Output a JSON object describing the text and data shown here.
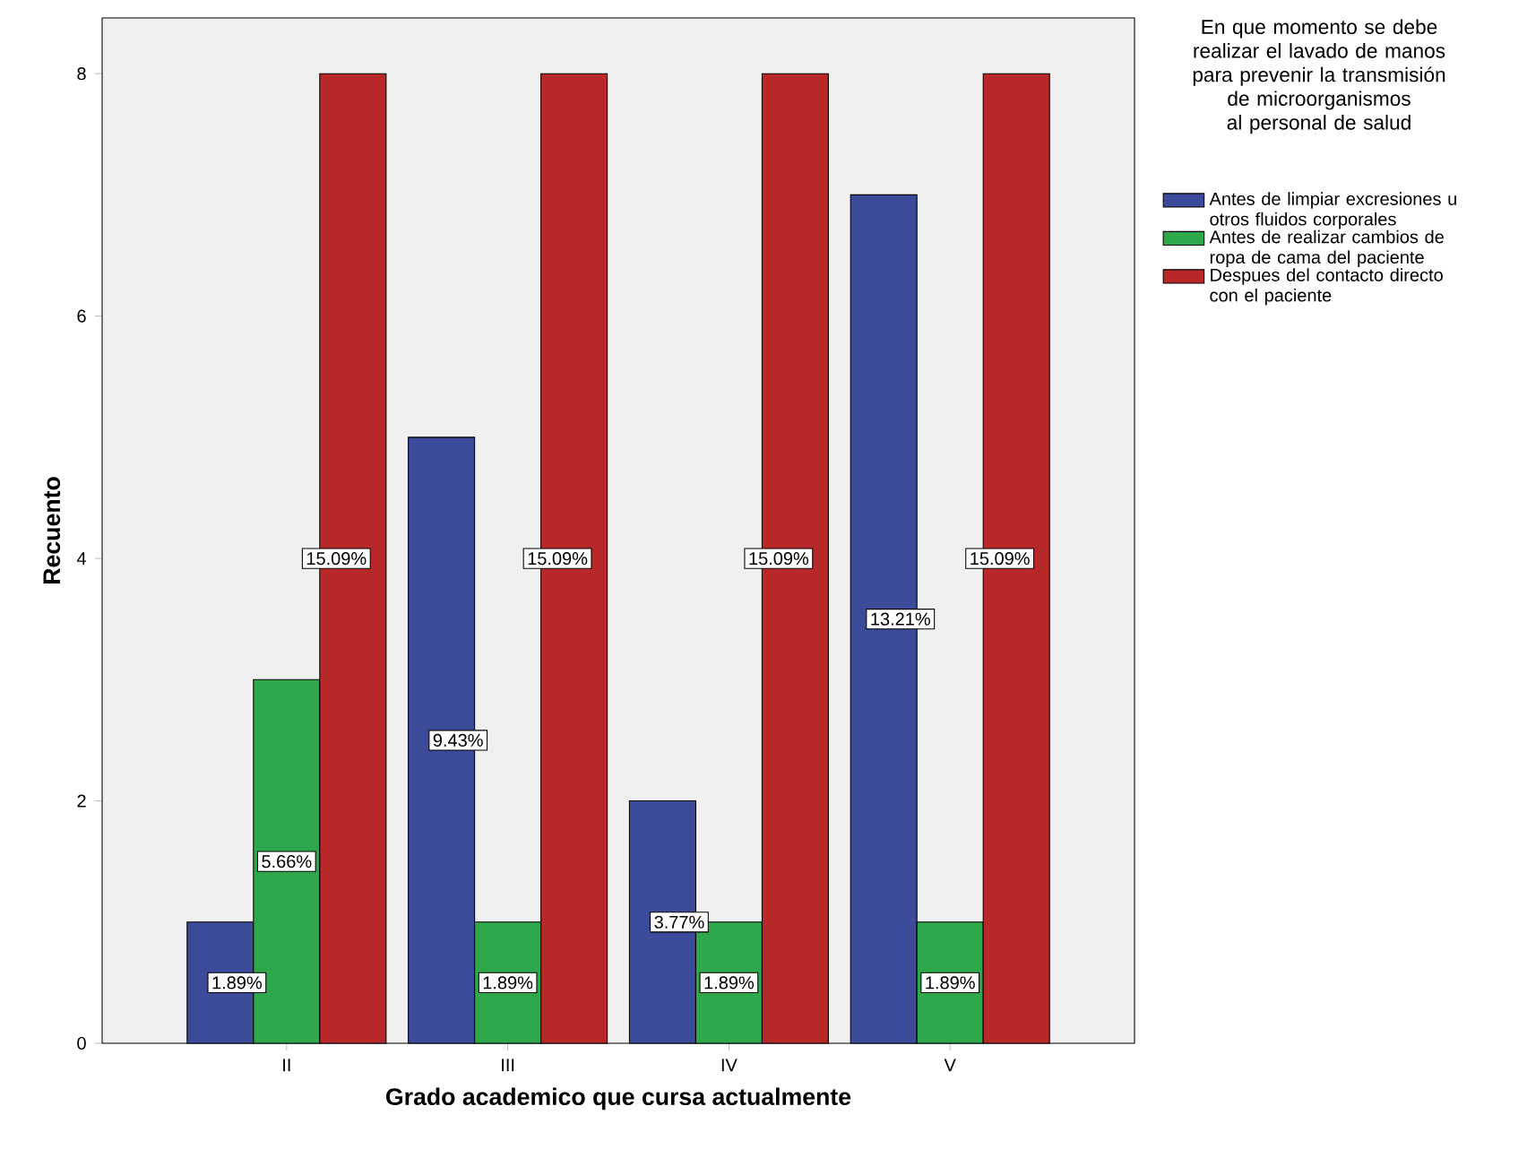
{
  "chart_data": {
    "type": "bar",
    "xlabel": "Grado academico que cursa actualmente",
    "ylabel": "Recuento",
    "legend_title": "En que momento se debe realizar el lavado de manos para prevenir la transmisión de microorganismos al personal de salud",
    "categories": [
      "II",
      "III",
      "IV",
      "V"
    ],
    "series": [
      {
        "name": "Antes de limpiar excresiones u otros fluidos corporales",
        "color": "#3c4a9a",
        "values": [
          1,
          5,
          2,
          7
        ]
      },
      {
        "name": "Antes de realizar cambios de ropa de cama del paciente",
        "color": "#2ea84a",
        "values": [
          3,
          1,
          1,
          1
        ]
      },
      {
        "name": "Despues del contacto directo con el paciente",
        "color": "#b82828",
        "values": [
          8,
          8,
          8,
          8
        ]
      }
    ],
    "annotations": [
      "1.89%",
      "5.66%",
      "15.09%",
      "9.43%",
      "1.89%",
      "15.09%",
      "3.77%",
      "1.89%",
      "15.09%",
      "13.21%",
      "1.89%",
      "15.09%"
    ],
    "ylim": [
      0,
      8.46
    ],
    "yticks": [
      0,
      2,
      4,
      6,
      8
    ],
    "legend": "right",
    "grid": false
  }
}
